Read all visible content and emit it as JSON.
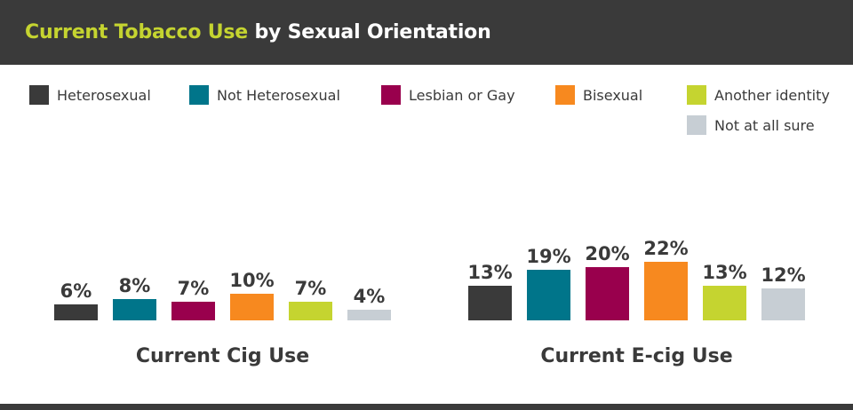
{
  "header": {
    "title_highlight": "Current Tobacco Use",
    "title_rest": " by Sexual Orientation"
  },
  "colors": {
    "header_bg": "#3a3a3a",
    "highlight": "#c5d430",
    "text": "#3a3a3a"
  },
  "legend": [
    {
      "label": "Heterosexual",
      "color": "#3a3a3a"
    },
    {
      "label": "Not Heterosexual",
      "color": "#00758a"
    },
    {
      "label": "Lesbian or Gay",
      "color": "#99004d"
    },
    {
      "label": "Bisexual",
      "color": "#f7891f"
    },
    {
      "label": "Another identity",
      "color": "#c5d430"
    },
    {
      "label": "Not at all sure",
      "color": "#c7ced4"
    }
  ],
  "chart_data": [
    {
      "type": "bar",
      "title": "Current Cig Use",
      "categories": [
        "Heterosexual",
        "Not Heterosexual",
        "Lesbian or Gay",
        "Bisexual",
        "Another identity",
        "Not at all sure"
      ],
      "values": [
        6,
        8,
        7,
        10,
        7,
        4
      ],
      "value_labels": [
        "6%",
        "8%",
        "7%",
        "10%",
        "7%",
        "4%"
      ],
      "ylim": [
        0,
        22
      ],
      "grid": false
    },
    {
      "type": "bar",
      "title": "Current E-cig Use",
      "categories": [
        "Heterosexual",
        "Not Heterosexual",
        "Lesbian or Gay",
        "Bisexual",
        "Another identity",
        "Not at all sure"
      ],
      "values": [
        13,
        19,
        20,
        22,
        13,
        12
      ],
      "value_labels": [
        "13%",
        "19%",
        "20%",
        "22%",
        "13%",
        "12%"
      ],
      "ylim": [
        0,
        22
      ],
      "grid": false
    }
  ]
}
